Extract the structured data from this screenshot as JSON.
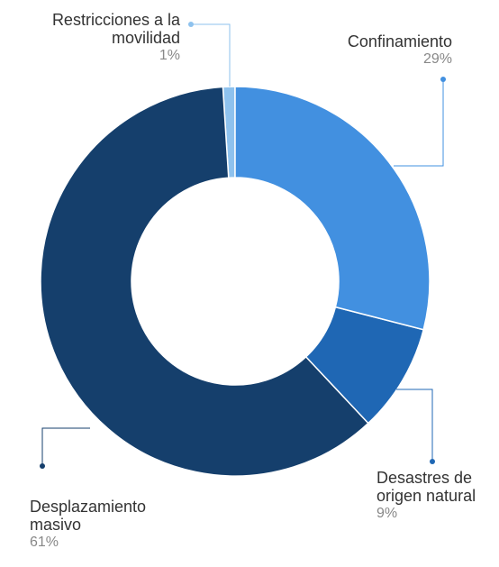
{
  "chart_data": {
    "type": "donut",
    "categories": [
      "Confinamiento",
      "Desastres de origen natural",
      "Desplazamiento masivo",
      "Restricciones a la movilidad"
    ],
    "values": [
      29,
      9,
      61,
      1
    ],
    "value_labels": [
      "29%",
      "9%",
      "61%",
      "1%"
    ],
    "colors": [
      "#4290e0",
      "#1f67b4",
      "#153f6c",
      "#8ec2ee"
    ]
  }
}
